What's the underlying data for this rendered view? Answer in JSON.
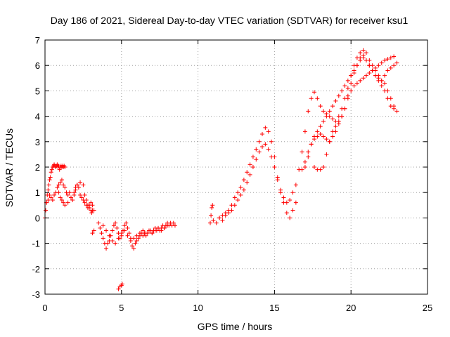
{
  "chart_data": {
    "type": "scatter",
    "title": "Day 186 of 2021, Sidereal Day-to-day VTEC variation (SDTVAR) for receiver ksu1",
    "xlabel": "GPS time / hours",
    "ylabel": "SDTVAR / TECUs",
    "xlim": [
      0,
      25
    ],
    "ylim": [
      -3,
      7
    ],
    "xticks": [
      "0",
      "5",
      "10",
      "15",
      "20",
      "25"
    ],
    "yticks": [
      "-3",
      "-2",
      "-1",
      "0",
      "1",
      "2",
      "3",
      "4",
      "5",
      "6",
      "7"
    ],
    "grid": true,
    "marker": "+",
    "color": "#ff0000",
    "series": [
      {
        "name": "SDTVAR",
        "x": [
          0.0,
          0.05,
          0.1,
          0.15,
          0.2,
          0.25,
          0.3,
          0.35,
          0.4,
          0.45,
          0.5,
          0.55,
          0.6,
          0.65,
          0.7,
          0.75,
          0.8,
          0.85,
          0.9,
          0.95,
          1.0,
          1.05,
          1.1,
          1.15,
          1.2,
          1.25,
          1.3,
          0.1,
          0.2,
          0.3,
          0.4,
          0.5,
          0.6,
          0.7,
          0.8,
          0.9,
          1.0,
          1.1,
          1.2,
          1.3,
          1.4,
          1.5,
          1.6,
          1.7,
          1.8,
          1.9,
          2.0,
          2.1,
          2.2,
          2.3,
          2.4,
          2.5,
          2.6,
          2.7,
          2.8,
          2.9,
          3.0,
          3.1,
          3.2,
          0.9,
          1.0,
          1.1,
          1.2,
          1.3,
          1.5,
          1.7,
          1.9,
          2.0,
          2.1,
          2.3,
          2.5,
          2.6,
          2.7,
          2.8,
          2.9,
          3.0,
          3.05,
          3.1,
          3.1,
          3.2,
          3.5,
          3.6,
          3.7,
          3.8,
          3.9,
          4.0,
          4.1,
          4.2,
          4.3,
          4.4,
          4.5,
          4.6,
          4.7,
          4.8,
          4.9,
          5.0,
          5.1,
          5.2,
          5.3,
          5.4,
          5.5,
          5.6,
          5.7,
          5.8,
          5.9,
          6.0,
          6.1,
          6.2,
          6.3,
          6.4,
          6.5,
          6.6,
          6.7,
          6.8,
          6.9,
          7.0,
          7.1,
          7.2,
          7.3,
          7.4,
          7.5,
          7.6,
          7.7,
          7.8,
          7.9,
          8.0,
          8.1,
          8.2,
          8.3,
          8.4,
          8.5,
          3.8,
          4.0,
          4.2,
          4.4,
          4.6,
          4.8,
          5.0,
          5.2,
          5.4,
          5.6,
          5.8,
          6.0,
          6.2,
          6.4,
          6.6,
          6.8,
          7.0,
          7.2,
          7.4,
          7.6,
          7.8,
          8.0,
          4.8,
          4.9,
          5.0,
          5.05,
          10.8,
          10.85,
          10.9,
          10.95,
          11.0,
          11.2,
          11.4,
          11.6,
          11.8,
          12.0,
          12.2,
          12.4,
          12.6,
          12.8,
          13.0,
          13.2,
          13.4,
          13.6,
          13.8,
          14.0,
          14.2,
          14.4,
          14.6,
          14.8,
          15.0,
          15.2,
          15.4,
          15.6,
          15.8,
          16.0,
          16.2,
          16.4,
          11.4,
          11.6,
          11.8,
          12.0,
          12.2,
          12.4,
          12.6,
          12.8,
          13.0,
          13.2,
          13.4,
          13.6,
          13.8,
          14.0,
          14.2,
          14.4,
          14.6,
          14.8,
          15.0,
          15.2,
          15.4,
          15.6,
          15.8,
          16.0,
          16.2,
          16.4,
          16.6,
          16.8,
          17.0,
          17.2,
          17.4,
          17.6,
          17.8,
          18.0,
          18.2,
          18.4,
          18.6,
          18.8,
          19.0,
          19.2,
          19.4,
          19.6,
          19.8,
          20.0,
          20.2,
          20.4,
          20.6,
          20.8,
          21.0,
          21.2,
          21.4,
          21.6,
          21.8,
          22.0,
          22.2,
          22.4,
          22.6,
          22.8,
          17.0,
          17.2,
          17.4,
          17.6,
          17.8,
          18.0,
          18.2,
          18.4,
          18.6,
          18.8,
          19.0,
          19.2,
          19.4,
          19.6,
          19.8,
          20.0,
          20.2,
          20.4,
          20.6,
          20.8,
          21.0,
          21.2,
          21.4,
          21.6,
          21.8,
          22.0,
          22.2,
          22.4,
          22.6,
          22.8,
          23.0,
          16.8,
          17.0,
          17.2,
          17.4,
          17.6,
          17.8,
          18.0,
          18.2,
          18.4,
          18.6,
          18.8,
          19.0,
          19.2,
          19.4,
          19.6,
          19.8,
          20.0,
          20.2,
          20.4,
          20.6,
          20.8,
          21.0,
          21.2,
          21.4,
          21.6,
          21.8,
          22.0,
          22.2,
          22.4,
          22.6,
          22.8,
          17.6,
          17.8,
          18.0,
          18.2,
          18.4,
          18.6,
          18.8,
          19.0,
          19.2,
          19.4,
          19.6,
          19.8,
          20.0,
          20.2,
          20.4,
          20.6,
          20.8,
          21.0,
          21.2,
          21.4,
          21.6,
          21.8,
          22.0,
          22.2,
          22.4,
          22.6,
          22.8,
          23.0
        ],
        "y": [
          0.0,
          0.3,
          0.6,
          0.9,
          1.1,
          1.3,
          1.5,
          1.6,
          1.8,
          1.9,
          2.0,
          2.05,
          2.1,
          2.05,
          2.0,
          2.05,
          2.1,
          2.0,
          2.05,
          1.9,
          2.0,
          2.05,
          2.0,
          2.05,
          2.0,
          2.05,
          2.0,
          0.6,
          0.7,
          0.9,
          0.8,
          0.7,
          0.9,
          1.0,
          1.2,
          1.3,
          1.4,
          1.5,
          1.3,
          1.2,
          1.0,
          0.9,
          1.0,
          0.8,
          0.7,
          0.9,
          1.1,
          1.3,
          1.2,
          0.9,
          0.8,
          0.7,
          0.6,
          0.5,
          0.4,
          0.5,
          0.6,
          0.5,
          0.3,
          1.0,
          0.8,
          0.7,
          0.6,
          0.5,
          0.6,
          0.8,
          1.0,
          1.2,
          1.3,
          1.4,
          1.3,
          0.9,
          0.7,
          0.5,
          0.4,
          0.3,
          0.2,
          0.3,
          -0.6,
          -0.5,
          -0.2,
          -0.4,
          -0.6,
          -0.8,
          -1.0,
          -1.2,
          -1.0,
          -0.9,
          -0.7,
          -0.5,
          -0.3,
          -0.2,
          -0.4,
          -0.6,
          -0.8,
          -0.7,
          -0.5,
          -0.3,
          -0.2,
          -0.4,
          -0.6,
          -0.8,
          -1.1,
          -1.2,
          -1.0,
          -0.9,
          -0.8,
          -0.7,
          -0.6,
          -0.5,
          -0.6,
          -0.7,
          -0.6,
          -0.5,
          -0.5,
          -0.6,
          -0.5,
          -0.4,
          -0.5,
          -0.4,
          -0.5,
          -0.4,
          -0.3,
          -0.4,
          -0.3,
          -0.2,
          -0.3,
          -0.2,
          -0.3,
          -0.2,
          -0.3,
          -0.3,
          -0.5,
          -0.7,
          -0.9,
          -1.0,
          -0.8,
          -0.6,
          -0.5,
          -0.7,
          -0.9,
          -0.8,
          -0.7,
          -0.6,
          -0.7,
          -0.6,
          -0.5,
          -0.6,
          -0.5,
          -0.4,
          -0.5,
          -0.4,
          -0.3,
          -2.8,
          -2.7,
          -2.65,
          -2.6,
          -0.2,
          0.1,
          0.4,
          0.5,
          -0.1,
          -0.2,
          0.0,
          0.1,
          0.2,
          0.3,
          0.5,
          0.8,
          1.0,
          1.2,
          1.5,
          1.8,
          2.1,
          2.4,
          2.7,
          3.0,
          3.3,
          3.55,
          3.4,
          3.0,
          2.4,
          1.6,
          1.0,
          0.6,
          0.2,
          0.0,
          0.3,
          0.6,
          0.0,
          -0.1,
          0.1,
          0.2,
          0.3,
          0.5,
          0.7,
          0.9,
          1.1,
          1.4,
          1.7,
          2.0,
          2.3,
          2.6,
          2.8,
          2.9,
          2.7,
          2.4,
          2.0,
          1.5,
          1.1,
          0.8,
          0.6,
          0.7,
          1.0,
          1.3,
          1.9,
          2.6,
          3.4,
          4.2,
          4.7,
          4.95,
          4.7,
          4.4,
          4.2,
          4.1,
          4.0,
          3.9,
          3.8,
          4.0,
          4.3,
          4.7,
          5.1,
          5.6,
          6.0,
          6.3,
          6.5,
          6.4,
          6.2,
          6.0,
          5.8,
          5.6,
          5.4,
          5.2,
          5.0,
          4.7,
          4.4,
          4.3,
          2.0,
          2.4,
          2.9,
          3.2,
          3.4,
          3.6,
          3.8,
          4.0,
          4.2,
          4.4,
          4.6,
          4.8,
          5.0,
          5.2,
          5.4,
          5.6,
          5.8,
          6.0,
          6.2,
          6.3,
          6.2,
          6.0,
          5.8,
          5.6,
          5.5,
          5.4,
          5.3,
          5.0,
          4.7,
          4.4,
          4.2,
          1.9,
          2.2,
          2.6,
          2.9,
          3.1,
          3.2,
          3.3,
          3.2,
          3.1,
          3.0,
          3.2,
          3.4,
          3.7,
          4.0,
          4.3,
          4.7,
          5.0,
          5.2,
          5.3,
          5.4,
          5.5,
          5.6,
          5.7,
          5.8,
          5.9,
          6.0,
          6.1,
          6.2,
          6.25,
          6.3,
          6.35,
          2.0,
          1.9,
          1.9,
          2.0,
          2.5,
          3.0,
          3.4,
          3.6,
          3.8,
          4.0,
          4.3,
          4.8,
          5.3,
          5.7,
          6.0,
          6.3,
          6.6,
          6.5,
          6.2,
          6.0,
          5.8,
          5.6,
          5.4,
          5.6,
          5.8,
          5.9,
          6.0,
          6.1
        ]
      }
    ]
  }
}
